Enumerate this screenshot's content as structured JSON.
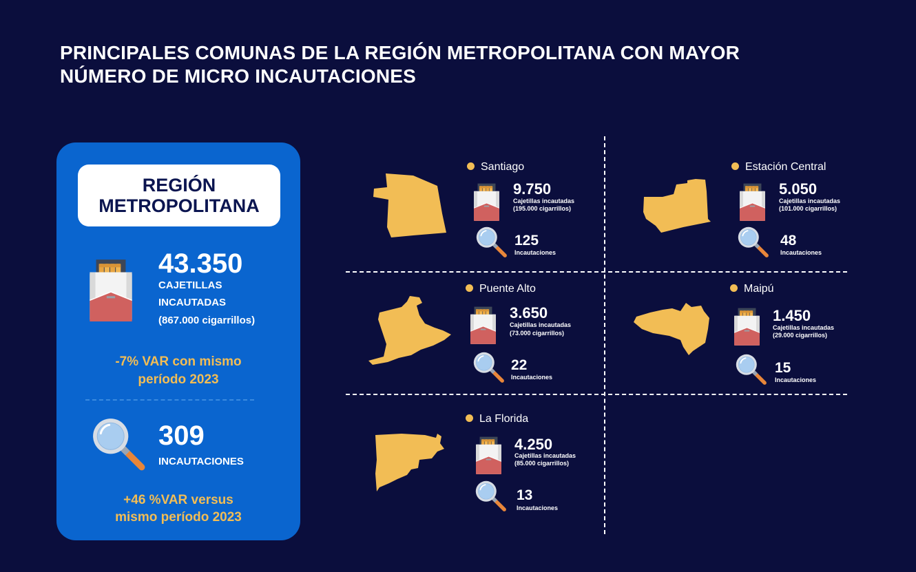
{
  "title": {
    "line1": "PRINCIPALES COMUNAS DE LA REGIÓN METROPOLITANA CON MAYOR",
    "line2": "NÚMERO DE MICRO INCAUTACIONES"
  },
  "colors": {
    "background": "#0b0e3d",
    "card": "#0a65cf",
    "accent": "#f2bd55",
    "map": "#f2bd55"
  },
  "region": {
    "name_line1": "REGIÓN",
    "name_line2": "METROPOLITANA",
    "packs_value": "43.350",
    "packs_label_line1": "CAJETILLAS",
    "packs_label_line2": "INCAUTADAS",
    "packs_cigarettes": "(867.000 cigarrillos)",
    "packs_var_line1": "-7% VAR con mismo",
    "packs_var_line2": "período 2023",
    "seizures_value": "309",
    "seizures_label": "INCAUTACIONES",
    "seizures_var_line1": "+46 %VAR versus",
    "seizures_var_line2": "mismo período 2023",
    "packs_icon": "cigarette-pack-icon",
    "seizures_icon": "magnifier-icon"
  },
  "comunas": [
    {
      "name": "Santiago",
      "packs": "9.750",
      "packs_label": "Cajetillas incautadas",
      "cigarettes": "(195.000 cigarrillos)",
      "seizures": "125",
      "seizures_label": "Incautaciones"
    },
    {
      "name": "Estación Central",
      "packs": "5.050",
      "packs_label": "Cajetillas incautadas",
      "cigarettes": "(101.000 cigarrillos)",
      "seizures": "48",
      "seizures_label": "Incautaciones"
    },
    {
      "name": "Puente Alto",
      "packs": "3.650",
      "packs_label": "Cajetillas incautadas",
      "cigarettes": "(73.000 cigarrillos)",
      "seizures": "22",
      "seizures_label": "Incautaciones"
    },
    {
      "name": "Maipú",
      "packs": "1.450",
      "packs_label": "Cajetillas incautadas",
      "cigarettes": "(29.000 cigarrillos)",
      "seizures": "15",
      "seizures_label": "Incautaciones"
    },
    {
      "name": "La Florida",
      "packs": "4.250",
      "packs_label": "Cajetillas incautadas",
      "cigarettes": "(85.000 cigarrillos)",
      "seizures": "13",
      "seizures_label": "Incautaciones"
    }
  ]
}
